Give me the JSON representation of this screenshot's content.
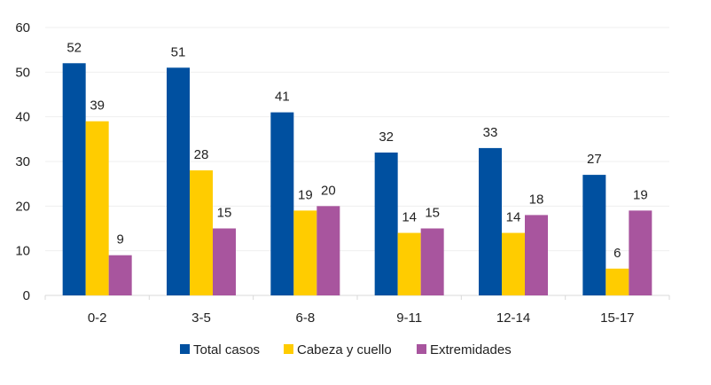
{
  "chart_data": {
    "type": "bar",
    "title": "",
    "xlabel": "",
    "ylabel": "",
    "categories": [
      "0-2",
      "3-5",
      "6-8",
      "9-11",
      "12-14",
      "15-17"
    ],
    "series": [
      {
        "name": "Total casos",
        "color": "#0050a0",
        "values": [
          52,
          51,
          41,
          32,
          33,
          27
        ]
      },
      {
        "name": "Cabeza y cuello",
        "color": "#ffcc00",
        "values": [
          39,
          28,
          19,
          14,
          14,
          6
        ]
      },
      {
        "name": "Extremidades",
        "color": "#a8559e",
        "values": [
          9,
          15,
          20,
          15,
          18,
          19
        ]
      }
    ],
    "ylim": [
      0,
      60
    ],
    "yticks": [
      0,
      10,
      20,
      30,
      40,
      50,
      60
    ],
    "grid": true,
    "data_labels": true,
    "legend": "bottom"
  }
}
